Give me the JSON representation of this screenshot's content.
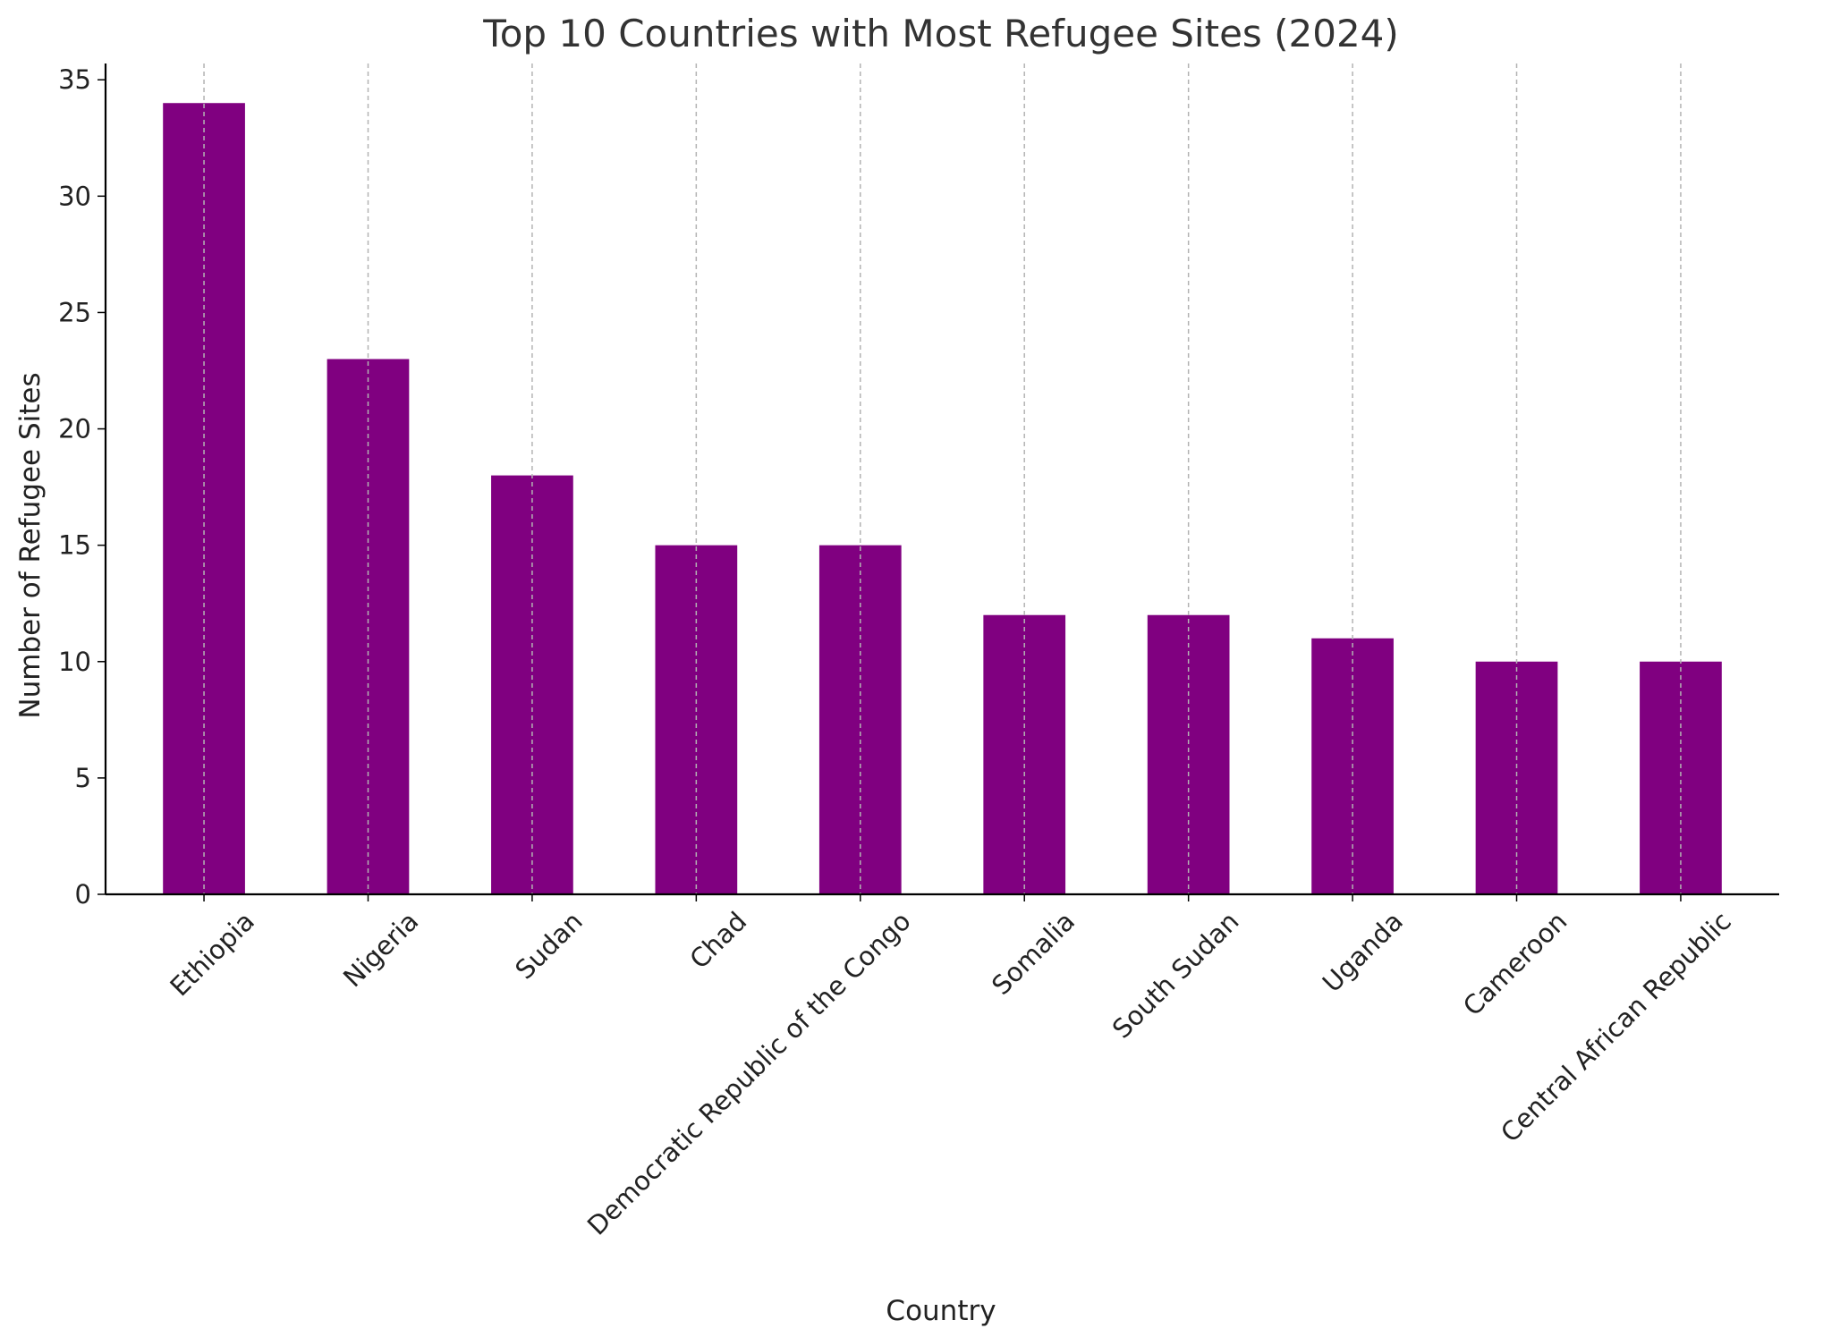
{
  "chart_data": {
    "type": "bar",
    "title": "Top 10 Countries with Most Refugee Sites (2024)",
    "xlabel": "Country",
    "ylabel": "Number of Refugee Sites",
    "categories": [
      "Ethiopia",
      "Nigeria",
      "Sudan",
      "Chad",
      "Democratic Republic of the Congo",
      "Somalia",
      "South Sudan",
      "Uganda",
      "Cameroon",
      "Central African Republic"
    ],
    "values": [
      34,
      23,
      18,
      15,
      15,
      12,
      12,
      11,
      10,
      10
    ],
    "ylim": [
      0,
      35.7
    ],
    "yticks": [
      0,
      5,
      10,
      15,
      20,
      25,
      30,
      35
    ],
    "bar_color": "#800080",
    "grid": "vertical dashed",
    "legend": "none"
  }
}
